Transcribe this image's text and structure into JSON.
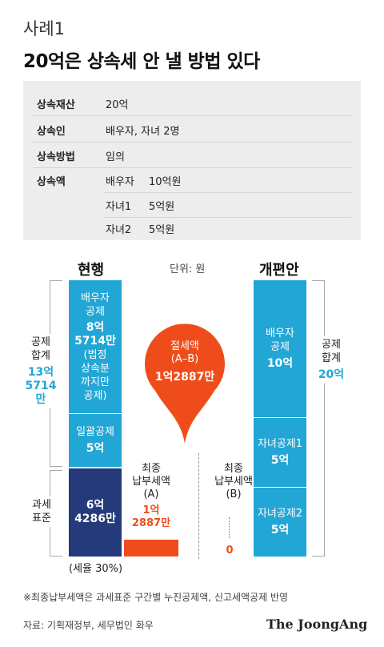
{
  "header": {
    "kicker": "사례1",
    "title": "20억은 상속세 안 낼 방법 있다"
  },
  "info": {
    "rows": [
      {
        "key": "상속재산",
        "value": "20억"
      },
      {
        "key": "상속인",
        "value": "배우자, 자녀 2명"
      },
      {
        "key": "상속방법",
        "value": "임의"
      }
    ],
    "amount_key": "상속액",
    "amount_rows": [
      {
        "who": "배우자",
        "amt": "10억원"
      },
      {
        "who": "자녀1",
        "amt": "5억원"
      },
      {
        "who": "자녀2",
        "amt": "5억원"
      }
    ]
  },
  "chart": {
    "unit": "단위: 원",
    "current": {
      "heading": "현행",
      "spouse_deduction": {
        "line1": "배우자",
        "line2": "공제",
        "amount1": "8억",
        "amount2": "5714만",
        "note1": "(법정",
        "note2": "상속분",
        "note3": "까지만",
        "note4": "공제)"
      },
      "lump_deduction": {
        "label": "일괄공제",
        "amount": "5억"
      },
      "tax_base": {
        "amount1": "6억",
        "amount2": "4286만"
      },
      "deduction_total": {
        "line1": "공제",
        "line2": "합계",
        "num1": "13억",
        "num2": "5714만"
      },
      "tax_base_label": {
        "line1": "과세",
        "line2": "표준"
      },
      "tax_rate": "(세율 30%)",
      "final_tax": {
        "line1": "최종",
        "line2": "납부세액",
        "line3": "(A)",
        "amount1": "1억",
        "amount2": "2887만"
      }
    },
    "savings": {
      "line1": "절세액",
      "line2": "(A–B)",
      "amount": "1억2887만"
    },
    "proposed": {
      "heading": "개편안",
      "spouse_deduction": {
        "line1": "배우자",
        "line2": "공제",
        "amount": "10억"
      },
      "child1_deduction": {
        "label": "자녀공제1",
        "amount": "5억"
      },
      "child2_deduction": {
        "label": "자녀공제2",
        "amount": "5억"
      },
      "deduction_total": {
        "line1": "공제",
        "line2": "합계",
        "num": "20억"
      },
      "final_tax": {
        "line1": "최종",
        "line2": "납부세액",
        "line3": "(B)",
        "amount": "0"
      }
    }
  },
  "footer": {
    "note": "※최종납부세액은 과세표준 구간별 누진공제액, 신고세액공제 반영",
    "source": "자료: 기획재정부, 세무법인 화우",
    "brand": "The JoongAng"
  },
  "colors": {
    "cyan": "#22a6d5",
    "navy": "#243a7a",
    "red": "#ee4d1b"
  }
}
